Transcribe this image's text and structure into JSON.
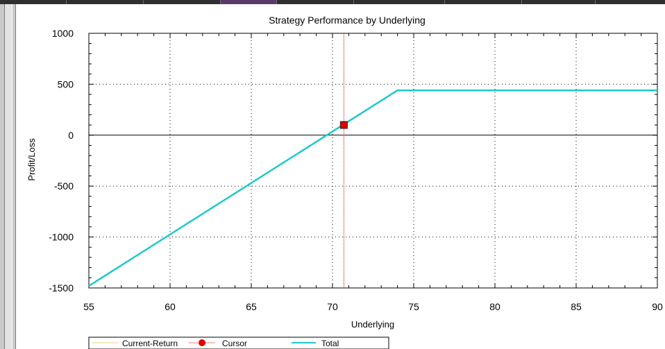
{
  "chart_data": {
    "type": "line",
    "title": "Strategy Performance by Underlying",
    "xlabel": "Underlying",
    "ylabel": "Profit/Loss",
    "xlim": [
      55,
      90
    ],
    "ylim": [
      -1500,
      1000
    ],
    "x_ticks": [
      55,
      60,
      65,
      70,
      75,
      80,
      85,
      90
    ],
    "y_ticks": [
      1000,
      500,
      0,
      -500,
      -1000,
      -1500
    ],
    "grid": true,
    "legend_position": "bottom",
    "series": [
      {
        "name": "Total",
        "color": "#1ec8c8",
        "points": [
          {
            "x": 55,
            "y": -1480
          },
          {
            "x": 74,
            "y": 440
          },
          {
            "x": 90,
            "y": 440
          }
        ]
      }
    ],
    "cursor": {
      "name": "Cursor",
      "color": "#e00000",
      "x": 70.7,
      "y": 100
    },
    "current_return": {
      "name": "Current-Return",
      "color": "#e0a000"
    },
    "legend": [
      "Current-Return",
      "Cursor",
      "Total"
    ]
  }
}
